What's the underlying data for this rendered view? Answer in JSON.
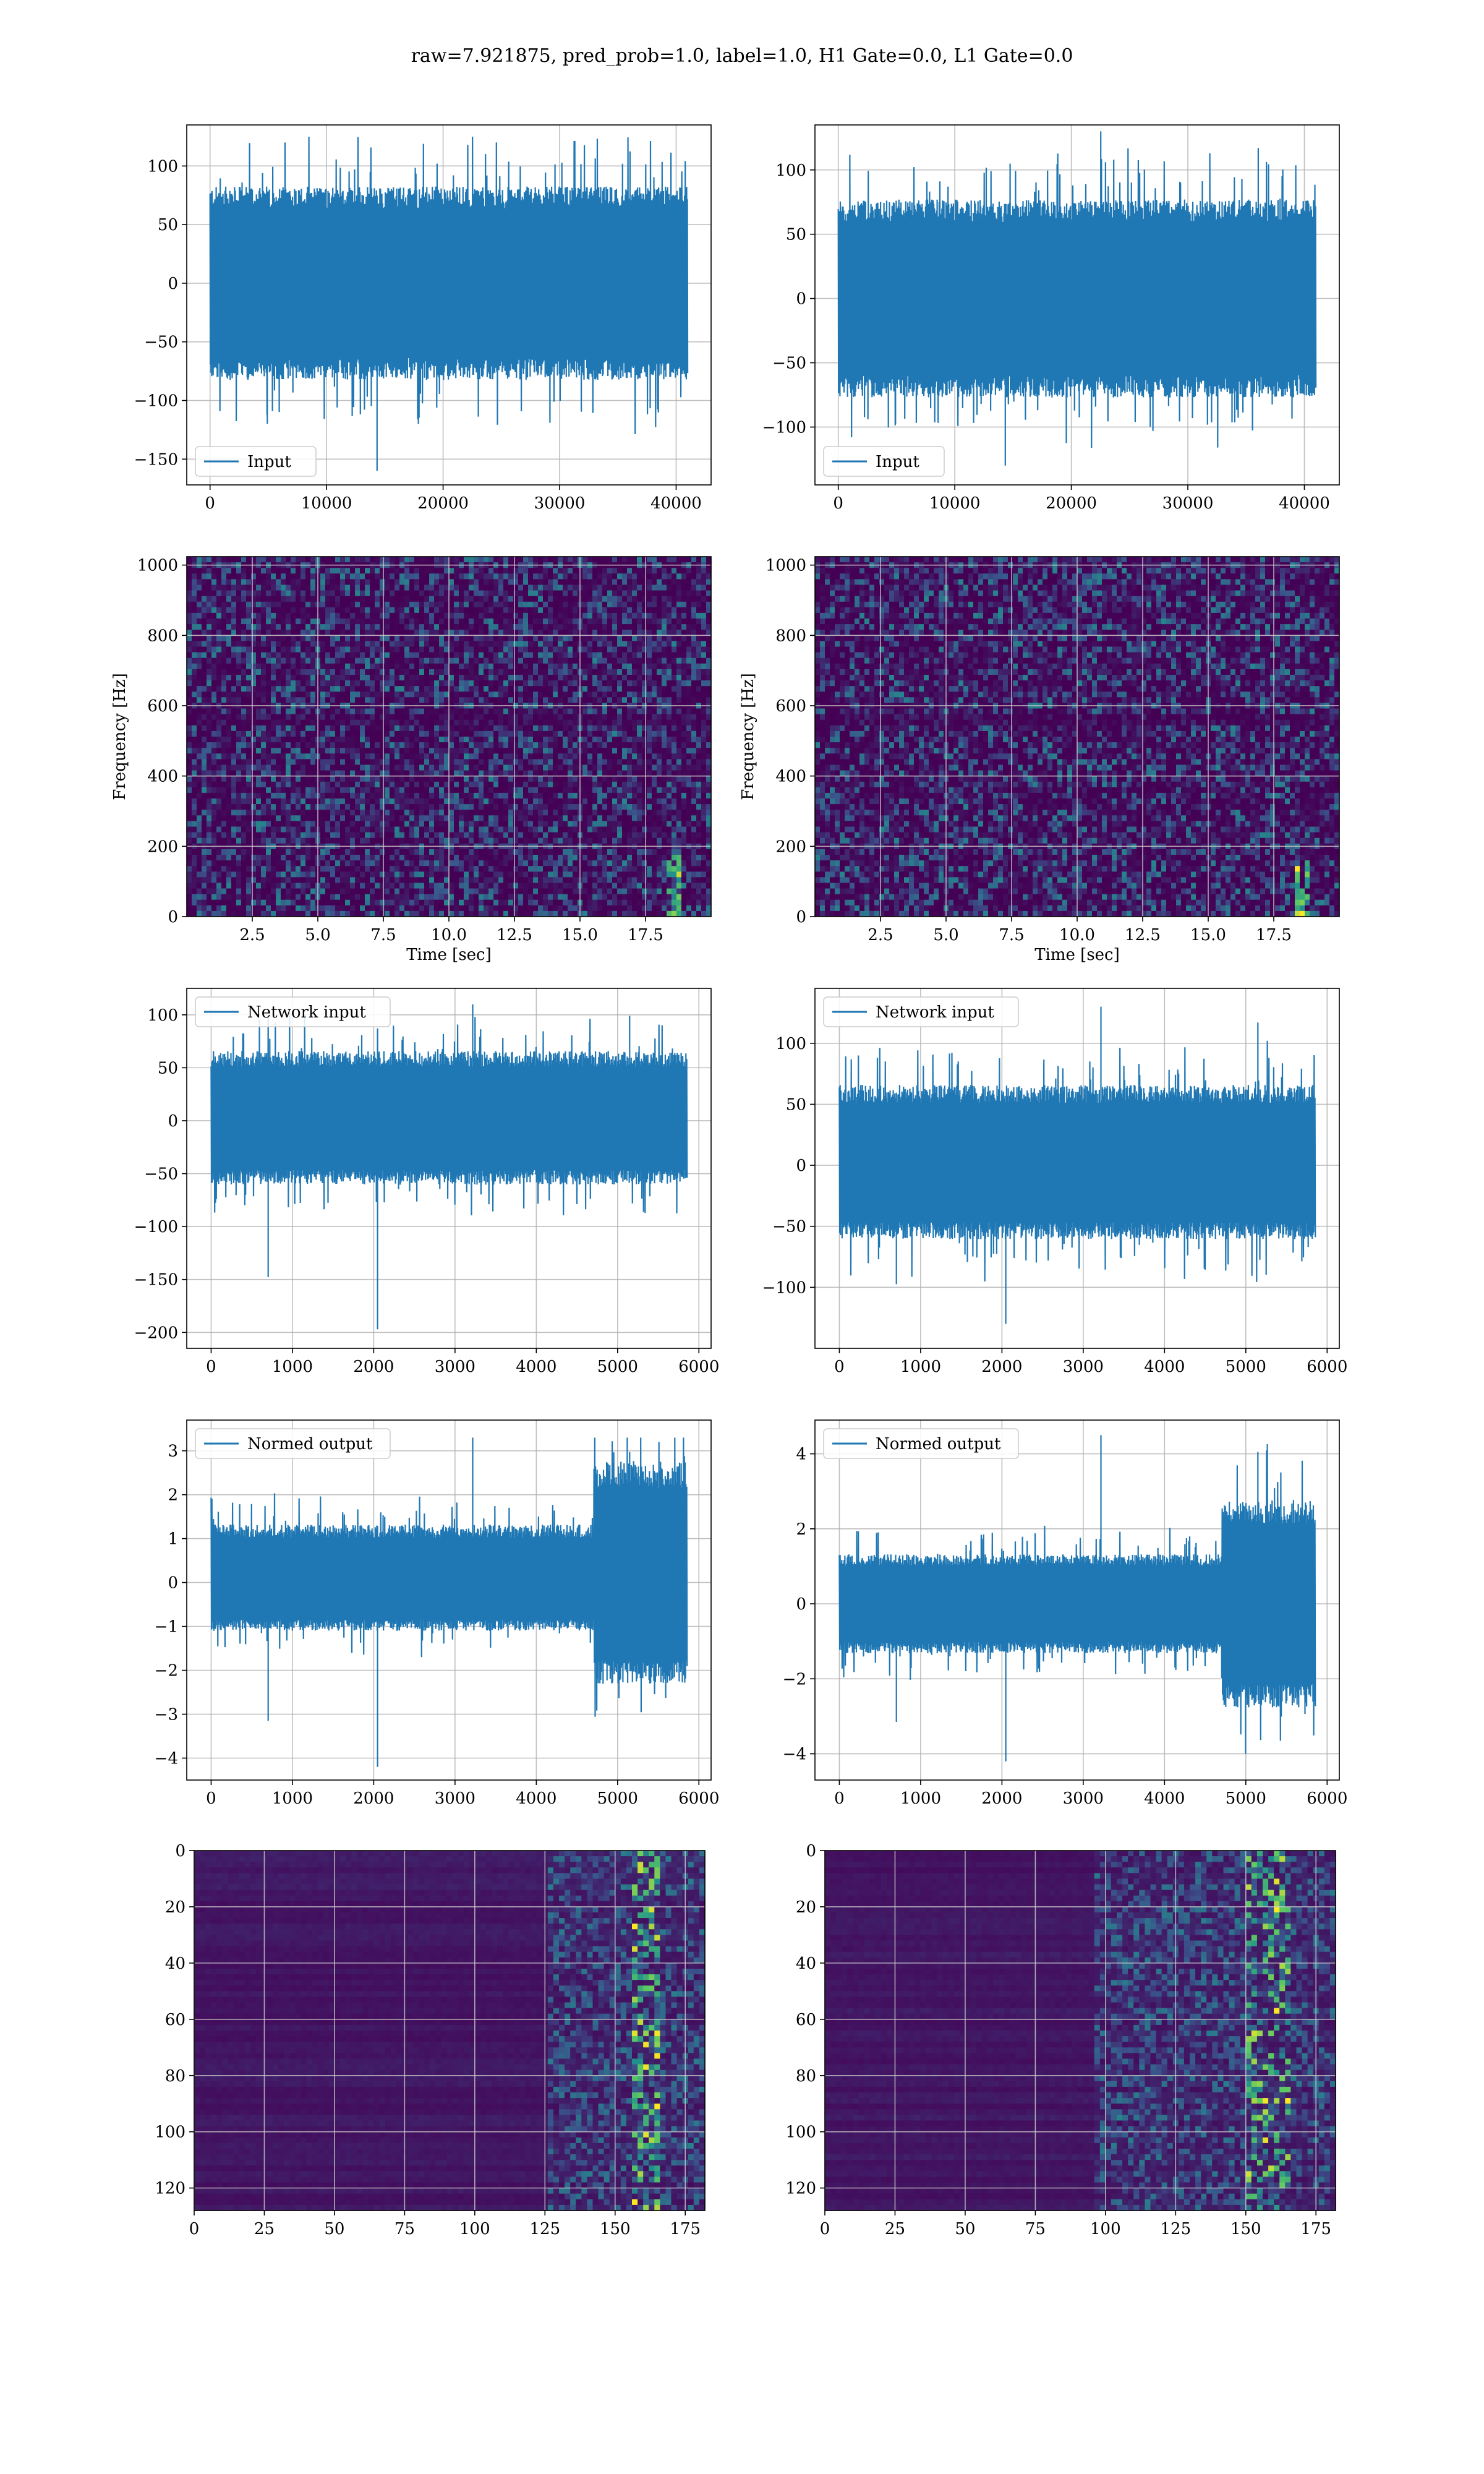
{
  "figure": {
    "title": "raw=7.921875, pred_prob=1.0, label=1.0, H1 Gate=0.0, L1 Gate=0.0"
  },
  "colors": {
    "line": "#1f77b4",
    "grid": "#b0b0b0",
    "viridis_low": "#440154",
    "viridis_mid": "#21918c",
    "viridis_high": "#fde725"
  },
  "chart_data": [
    {
      "id": "input_h1",
      "type": "line",
      "legend": "Input",
      "legend_loc": "lower left",
      "xlim": [
        -2000,
        43000
      ],
      "ylim": [
        -172,
        135
      ],
      "xticks": [
        0,
        10000,
        20000,
        30000,
        40000
      ],
      "yticks": [
        -150,
        -100,
        -50,
        0,
        50,
        100
      ],
      "x_range": [
        0,
        40960
      ],
      "n_samples": 700,
      "amplitude_core": [
        -75,
        75
      ],
      "amplitude_min": -160,
      "amplitude_max": 125,
      "grid": true
    },
    {
      "id": "input_l1",
      "type": "line",
      "legend": "Input",
      "legend_loc": "lower left",
      "xlim": [
        -2000,
        43000
      ],
      "ylim": [
        -145,
        135
      ],
      "xticks": [
        0,
        10000,
        20000,
        30000,
        40000
      ],
      "yticks": [
        -100,
        -50,
        0,
        50,
        100
      ],
      "x_range": [
        0,
        40960
      ],
      "n_samples": 700,
      "amplitude_core": [
        -70,
        70
      ],
      "amplitude_min": -130,
      "amplitude_max": 130,
      "grid": true
    },
    {
      "id": "spec_h1",
      "type": "heatmap",
      "xlabel": "Time [sec]",
      "ylabel": "Frequency [Hz]",
      "xlim": [
        0,
        20
      ],
      "ylim": [
        0,
        1024
      ],
      "xticks": [
        "2.5",
        "5.0",
        "7.5",
        "10.0",
        "12.5",
        "15.0",
        "17.5"
      ],
      "xtick_values": [
        2.5,
        5.0,
        7.5,
        10.0,
        12.5,
        15.0,
        17.5
      ],
      "yticks": [
        0,
        200,
        400,
        600,
        800,
        1000
      ],
      "colormap": "viridis",
      "grid": true
    },
    {
      "id": "spec_l1",
      "type": "heatmap",
      "xlabel": "Time [sec]",
      "ylabel": "Frequency [Hz]",
      "xlim": [
        0,
        20
      ],
      "ylim": [
        0,
        1024
      ],
      "xticks": [
        "2.5",
        "5.0",
        "7.5",
        "10.0",
        "12.5",
        "15.0",
        "17.5"
      ],
      "xtick_values": [
        2.5,
        5.0,
        7.5,
        10.0,
        12.5,
        15.0,
        17.5
      ],
      "yticks": [
        0,
        200,
        400,
        600,
        800,
        1000
      ],
      "colormap": "viridis",
      "grid": true
    },
    {
      "id": "net_h1",
      "type": "line",
      "legend": "Network input",
      "legend_loc": "upper left",
      "xlim": [
        -300,
        6150
      ],
      "ylim": [
        -215,
        125
      ],
      "xticks": [
        0,
        1000,
        2000,
        3000,
        4000,
        5000,
        6000
      ],
      "yticks": [
        -200,
        -150,
        -100,
        -50,
        0,
        50,
        100
      ],
      "x_range": [
        0,
        5850
      ],
      "n_samples": 600,
      "amplitude_core": [
        -55,
        60
      ],
      "amplitude_min": -197,
      "amplitude_max": 110,
      "grid": true
    },
    {
      "id": "net_l1",
      "type": "line",
      "legend": "Network input",
      "legend_loc": "upper left",
      "xlim": [
        -300,
        6150
      ],
      "ylim": [
        -150,
        145
      ],
      "xticks": [
        0,
        1000,
        2000,
        3000,
        4000,
        5000,
        6000
      ],
      "yticks": [
        -100,
        -50,
        0,
        50,
        100
      ],
      "x_range": [
        0,
        5850
      ],
      "n_samples": 600,
      "amplitude_core": [
        -55,
        60
      ],
      "amplitude_min": -130,
      "amplitude_max": 130,
      "grid": true
    },
    {
      "id": "out_h1",
      "type": "line",
      "legend": "Normed output",
      "legend_loc": "upper left",
      "xlim": [
        -300,
        6150
      ],
      "ylim": [
        -4.5,
        3.7
      ],
      "xticks": [
        0,
        1000,
        2000,
        3000,
        4000,
        5000,
        6000
      ],
      "yticks": [
        -4,
        -3,
        -2,
        -1,
        0,
        1,
        2,
        3
      ],
      "x_range": [
        0,
        5850
      ],
      "n_samples": 600,
      "amplitude_core": [
        -1.0,
        1.2
      ],
      "amplitude_min": -4.2,
      "amplitude_max": 3.3,
      "burst_range": [
        4700,
        5850
      ],
      "grid": true
    },
    {
      "id": "out_l1",
      "type": "line",
      "legend": "Normed output",
      "legend_loc": "upper left",
      "xlim": [
        -300,
        6150
      ],
      "ylim": [
        -4.7,
        4.9
      ],
      "xticks": [
        0,
        1000,
        2000,
        3000,
        4000,
        5000,
        6000
      ],
      "yticks": [
        -4,
        -2,
        0,
        2,
        4
      ],
      "x_range": [
        0,
        5850
      ],
      "n_samples": 600,
      "amplitude_core": [
        -1.2,
        1.2
      ],
      "amplitude_min": -4.2,
      "amplitude_max": 4.5,
      "burst_range": [
        4700,
        5850
      ],
      "grid": true
    },
    {
      "id": "feat_h1",
      "type": "heatmap",
      "xlim": [
        0,
        182
      ],
      "ylim": [
        128,
        0
      ],
      "xticks": [
        0,
        25,
        50,
        75,
        100,
        125,
        150,
        175
      ],
      "yticks": [
        0,
        20,
        40,
        60,
        80,
        100,
        120
      ],
      "active_from": 125,
      "peak_range": [
        155,
        165
      ],
      "colormap": "viridis",
      "grid": true
    },
    {
      "id": "feat_l1",
      "type": "heatmap",
      "xlim": [
        0,
        182
      ],
      "ylim": [
        128,
        0
      ],
      "xticks": [
        0,
        25,
        50,
        75,
        100,
        125,
        150,
        175
      ],
      "yticks": [
        0,
        20,
        40,
        60,
        80,
        100,
        120
      ],
      "active_from": 95,
      "peak_range": [
        150,
        165
      ],
      "colormap": "viridis",
      "grid": true
    }
  ]
}
